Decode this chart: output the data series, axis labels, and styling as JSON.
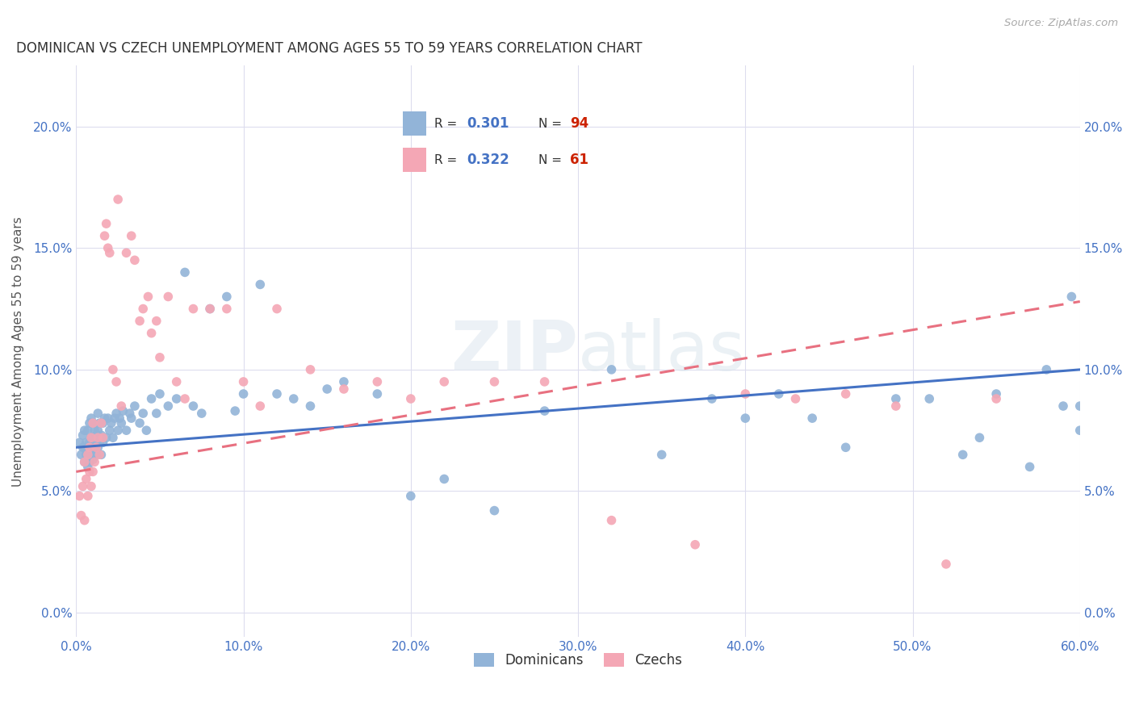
{
  "title": "DOMINICAN VS CZECH UNEMPLOYMENT AMONG AGES 55 TO 59 YEARS CORRELATION CHART",
  "source": "Source: ZipAtlas.com",
  "ylabel": "Unemployment Among Ages 55 to 59 years",
  "xlim": [
    0.0,
    0.6
  ],
  "ylim": [
    -0.01,
    0.225
  ],
  "xticks": [
    0.0,
    0.1,
    0.2,
    0.3,
    0.4,
    0.5,
    0.6
  ],
  "xticklabels": [
    "0.0%",
    "10.0%",
    "20.0%",
    "30.0%",
    "40.0%",
    "50.0%",
    "60.0%"
  ],
  "yticks": [
    0.0,
    0.05,
    0.1,
    0.15,
    0.2
  ],
  "yticklabels": [
    "0.0%",
    "5.0%",
    "10.0%",
    "15.0%",
    "20.0%"
  ],
  "blue_color": "#92B4D8",
  "pink_color": "#F4A7B5",
  "blue_line_color": "#4472C4",
  "pink_line_color": "#E87080",
  "tick_color": "#4472C4",
  "watermark": "ZIPatlas",
  "r_color": "#4472C4",
  "n_color": "#CC2200",
  "dominicans_x": [
    0.002,
    0.003,
    0.004,
    0.004,
    0.005,
    0.005,
    0.005,
    0.006,
    0.006,
    0.007,
    0.007,
    0.007,
    0.008,
    0.008,
    0.008,
    0.009,
    0.009,
    0.009,
    0.01,
    0.01,
    0.01,
    0.011,
    0.011,
    0.012,
    0.012,
    0.013,
    0.013,
    0.013,
    0.014,
    0.014,
    0.015,
    0.015,
    0.016,
    0.016,
    0.017,
    0.018,
    0.019,
    0.02,
    0.021,
    0.022,
    0.023,
    0.024,
    0.025,
    0.026,
    0.027,
    0.028,
    0.03,
    0.032,
    0.033,
    0.035,
    0.038,
    0.04,
    0.042,
    0.045,
    0.048,
    0.05,
    0.055,
    0.06,
    0.065,
    0.07,
    0.075,
    0.08,
    0.09,
    0.095,
    0.1,
    0.11,
    0.12,
    0.13,
    0.14,
    0.15,
    0.16,
    0.18,
    0.2,
    0.22,
    0.25,
    0.28,
    0.32,
    0.35,
    0.38,
    0.4,
    0.42,
    0.44,
    0.46,
    0.49,
    0.51,
    0.53,
    0.54,
    0.55,
    0.57,
    0.58,
    0.59,
    0.595,
    0.6,
    0.6
  ],
  "dominicans_y": [
    0.07,
    0.065,
    0.068,
    0.073,
    0.062,
    0.068,
    0.075,
    0.065,
    0.07,
    0.06,
    0.068,
    0.075,
    0.062,
    0.07,
    0.078,
    0.065,
    0.072,
    0.08,
    0.063,
    0.07,
    0.078,
    0.068,
    0.075,
    0.065,
    0.073,
    0.068,
    0.075,
    0.082,
    0.07,
    0.078,
    0.065,
    0.073,
    0.07,
    0.078,
    0.08,
    0.072,
    0.08,
    0.075,
    0.078,
    0.072,
    0.08,
    0.082,
    0.075,
    0.08,
    0.078,
    0.083,
    0.075,
    0.082,
    0.08,
    0.085,
    0.078,
    0.082,
    0.075,
    0.088,
    0.082,
    0.09,
    0.085,
    0.088,
    0.14,
    0.085,
    0.082,
    0.125,
    0.13,
    0.083,
    0.09,
    0.135,
    0.09,
    0.088,
    0.085,
    0.092,
    0.095,
    0.09,
    0.048,
    0.055,
    0.042,
    0.083,
    0.1,
    0.065,
    0.088,
    0.08,
    0.09,
    0.08,
    0.068,
    0.088,
    0.088,
    0.065,
    0.072,
    0.09,
    0.06,
    0.1,
    0.085,
    0.13,
    0.085,
    0.075
  ],
  "czechs_x": [
    0.002,
    0.003,
    0.004,
    0.005,
    0.005,
    0.006,
    0.007,
    0.007,
    0.008,
    0.008,
    0.009,
    0.009,
    0.01,
    0.01,
    0.011,
    0.012,
    0.013,
    0.014,
    0.015,
    0.016,
    0.017,
    0.018,
    0.019,
    0.02,
    0.022,
    0.024,
    0.025,
    0.027,
    0.03,
    0.033,
    0.035,
    0.038,
    0.04,
    0.043,
    0.045,
    0.048,
    0.05,
    0.055,
    0.06,
    0.065,
    0.07,
    0.08,
    0.09,
    0.1,
    0.11,
    0.12,
    0.14,
    0.16,
    0.18,
    0.2,
    0.22,
    0.25,
    0.28,
    0.32,
    0.37,
    0.4,
    0.43,
    0.46,
    0.49,
    0.52,
    0.55
  ],
  "czechs_y": [
    0.048,
    0.04,
    0.052,
    0.038,
    0.062,
    0.055,
    0.048,
    0.065,
    0.058,
    0.068,
    0.052,
    0.072,
    0.058,
    0.078,
    0.062,
    0.068,
    0.072,
    0.065,
    0.078,
    0.072,
    0.155,
    0.16,
    0.15,
    0.148,
    0.1,
    0.095,
    0.17,
    0.085,
    0.148,
    0.155,
    0.145,
    0.12,
    0.125,
    0.13,
    0.115,
    0.12,
    0.105,
    0.13,
    0.095,
    0.088,
    0.125,
    0.125,
    0.125,
    0.095,
    0.085,
    0.125,
    0.1,
    0.092,
    0.095,
    0.088,
    0.095,
    0.095,
    0.095,
    0.038,
    0.028,
    0.09,
    0.088,
    0.09,
    0.085,
    0.02,
    0.088
  ],
  "dom_trend_x": [
    0.0,
    0.6
  ],
  "dom_trend_y": [
    0.068,
    0.1
  ],
  "czech_trend_x": [
    0.0,
    0.6
  ],
  "czech_trend_y": [
    0.058,
    0.128
  ],
  "background_color": "#FFFFFF",
  "grid_color": "#DDDDEE"
}
